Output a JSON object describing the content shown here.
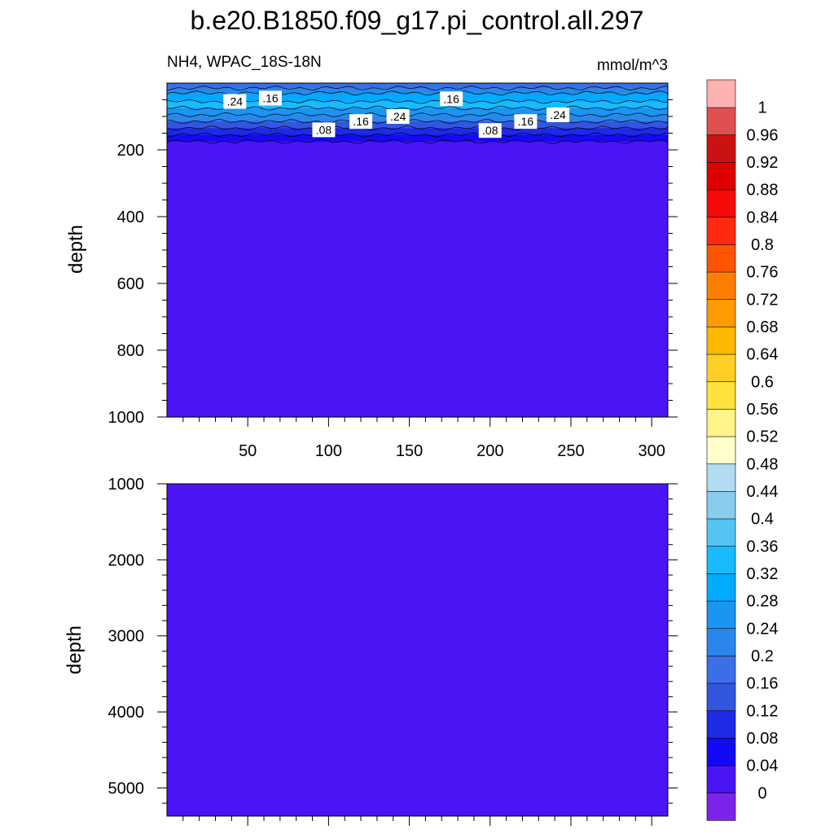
{
  "chart_data": {
    "type": "heatmap",
    "title": "b.e20.B1850.f09_g17.pi_control.all.297",
    "subtitle_left": "NH4, WPAC_18S-18N",
    "subtitle_right": "mmol/m^3",
    "panels": [
      {
        "name": "upper",
        "ylabel": "depth",
        "xlim": [
          0,
          310
        ],
        "ylim": [
          1000,
          0
        ],
        "x_ticks": [
          50,
          100,
          150,
          200,
          250,
          300
        ],
        "y_ticks": [
          200,
          400,
          600,
          800,
          1000
        ],
        "depth_profile": [
          {
            "depth": 0,
            "value": 0.14
          },
          {
            "depth": 15,
            "value": 0.2
          },
          {
            "depth": 30,
            "value": 0.26
          },
          {
            "depth": 55,
            "value": 0.34
          },
          {
            "depth": 75,
            "value": 0.3
          },
          {
            "depth": 95,
            "value": 0.24
          },
          {
            "depth": 115,
            "value": 0.18
          },
          {
            "depth": 135,
            "value": 0.12
          },
          {
            "depth": 155,
            "value": 0.07
          },
          {
            "depth": 175,
            "value": 0.03
          },
          {
            "depth": 195,
            "value": 0.01
          },
          {
            "depth": 1000,
            "value": 0.01
          }
        ],
        "contour_labels": [
          {
            "text": ".24",
            "x": 42,
            "depth": 55
          },
          {
            "text": ".16",
            "x": 64,
            "depth": 45
          },
          {
            "text": ".08",
            "x": 97,
            "depth": 140
          },
          {
            "text": ".16",
            "x": 120,
            "depth": 115
          },
          {
            "text": ".24",
            "x": 143,
            "depth": 100
          },
          {
            "text": ".16",
            "x": 176,
            "depth": 47
          },
          {
            "text": ".08",
            "x": 200,
            "depth": 142
          },
          {
            "text": ".16",
            "x": 222,
            "depth": 115
          },
          {
            "text": ".24",
            "x": 242,
            "depth": 95
          }
        ]
      },
      {
        "name": "lower",
        "ylabel": "depth",
        "xlim": [
          0,
          310
        ],
        "ylim": [
          5370,
          1000
        ],
        "y_ticks": [
          1000,
          2000,
          3000,
          4000,
          5000
        ],
        "value": 0.01
      }
    ],
    "colorbar": {
      "labels": [
        "0",
        "0.04",
        "0.08",
        "0.12",
        "0.16",
        "0.2",
        "0.24",
        "0.28",
        "0.32",
        "0.36",
        "0.4",
        "0.44",
        "0.48",
        "0.52",
        "0.56",
        "0.6",
        "0.64",
        "0.68",
        "0.72",
        "0.76",
        "0.8",
        "0.84",
        "0.88",
        "0.92",
        "0.96",
        "1"
      ],
      "colors": [
        "#7b23e8",
        "#4a14f5",
        "#1409f5",
        "#1e2ae6",
        "#3356e0",
        "#3b6ee8",
        "#2a86ed",
        "#1a95f2",
        "#00aaff",
        "#19bbff",
        "#55c4f5",
        "#88ccee",
        "#b2dcf2",
        "#ffffcc",
        "#fff38a",
        "#ffe23d",
        "#ffcf26",
        "#ffb800",
        "#ff9a00",
        "#ff7e00",
        "#ff5500",
        "#ff2a0f",
        "#f50a0a",
        "#de0000",
        "#cc1111",
        "#e05050",
        "#ffb0b0"
      ]
    }
  }
}
